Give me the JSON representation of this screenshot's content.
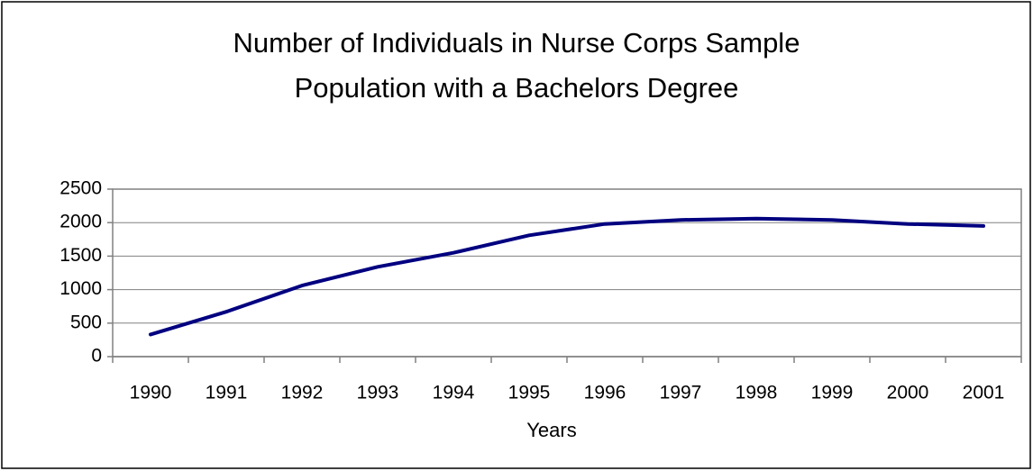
{
  "chart_data": {
    "type": "line",
    "title": [
      "Number of Individuals in Nurse Corps Sample",
      "Population with a Bachelors Degree"
    ],
    "xlabel": "Years",
    "categories": [
      "1990",
      "1991",
      "1992",
      "1993",
      "1994",
      "1995",
      "1996",
      "1997",
      "1998",
      "1999",
      "2000",
      "2001"
    ],
    "series": [
      {
        "color": "#000080",
        "values": [
          330,
          670,
          1060,
          1340,
          1550,
          1810,
          1980,
          2040,
          2060,
          2040,
          1980,
          1950
        ]
      }
    ],
    "ylim": [
      0,
      2500
    ],
    "yticks": [
      0,
      500,
      1000,
      1500,
      2000,
      2500
    ],
    "grid": true
  }
}
